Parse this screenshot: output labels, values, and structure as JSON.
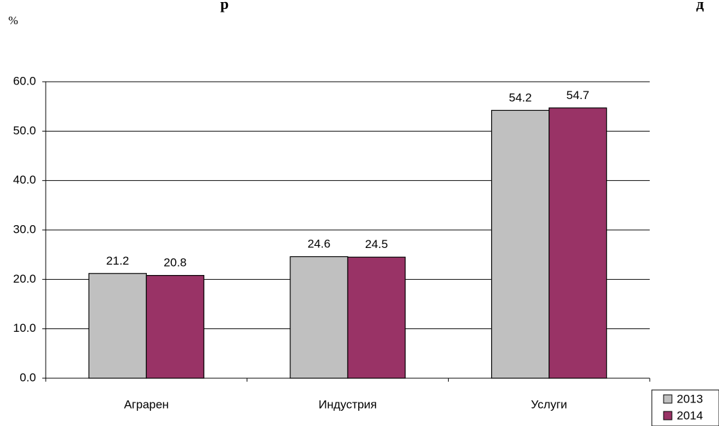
{
  "chart_data": {
    "type": "bar",
    "title": "…р… …д…",
    "unit_label": "%",
    "categories": [
      "Аграрен",
      "Индустрия",
      "Услуги"
    ],
    "series": [
      {
        "name": "2013",
        "color": "#c0c0c0",
        "values": [
          21.2,
          24.6,
          54.2
        ]
      },
      {
        "name": "2014",
        "color": "#993366",
        "values": [
          20.8,
          24.5,
          54.7
        ]
      }
    ],
    "data_labels": [
      [
        "21.2",
        "24.6",
        "54.2"
      ],
      [
        "20.8",
        "24.5",
        "54.7"
      ]
    ],
    "ylim": [
      0,
      60
    ],
    "yticks": [
      0,
      10,
      20,
      30,
      40,
      50,
      60
    ],
    "ytick_labels": [
      "0.0",
      "10.0",
      "20.0",
      "30.0",
      "40.0",
      "50.0",
      "60.0"
    ],
    "grid": true,
    "legend_position": "bottom-right",
    "xlabel": "",
    "ylabel": ""
  }
}
